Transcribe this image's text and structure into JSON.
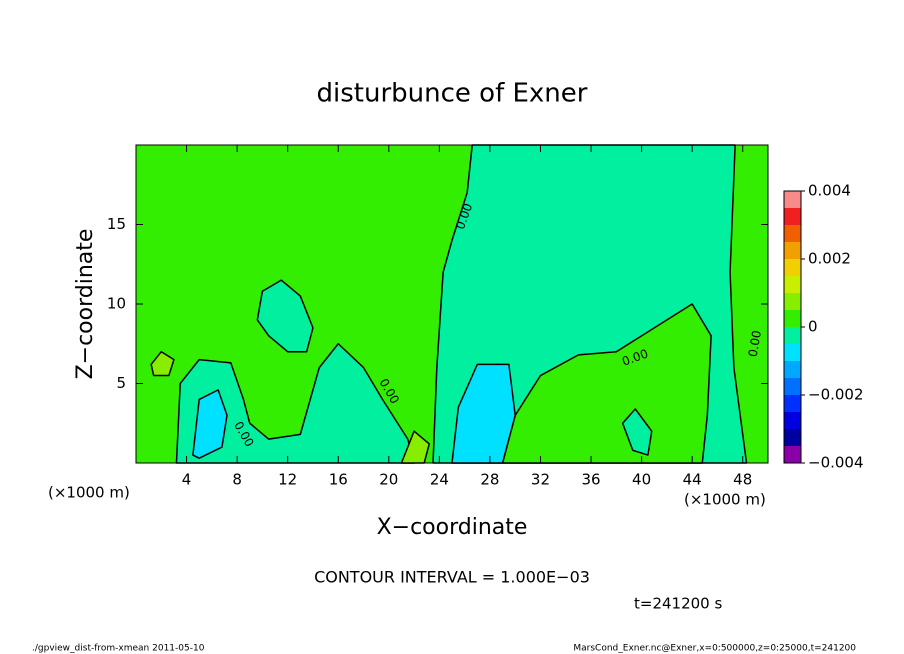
{
  "chart_data": {
    "type": "contour",
    "title": "disturbunce of Exner",
    "xlabel": "X−coordinate",
    "ylabel": "Z−coordinate",
    "x_unit": "(×1000 m)",
    "x_unit_right": "(×1000 m)",
    "xlim": [
      0,
      50
    ],
    "ylim": [
      0,
      20
    ],
    "xticks": [
      4,
      8,
      12,
      16,
      20,
      24,
      28,
      32,
      36,
      40,
      44,
      48
    ],
    "yticks": [
      5,
      10,
      15
    ],
    "background_level": 0,
    "colorbar": {
      "levels": [
        -0.004,
        -0.0035,
        -0.003,
        -0.0025,
        -0.002,
        -0.0015,
        -0.001,
        -0.0005,
        0,
        0.0005,
        0.001,
        0.0015,
        0.002,
        0.0025,
        0.003,
        0.0035,
        0.004
      ],
      "colors": [
        "#8a00a8",
        "#0000a0",
        "#0000e0",
        "#0030ff",
        "#0070ff",
        "#00a8ff",
        "#00e0ff",
        "#00f0a0",
        "#33ee00",
        "#88ee00",
        "#c8ee00",
        "#f0d000",
        "#f0a000",
        "#f06000",
        "#f02020",
        "#f88a8a"
      ],
      "ticks": [
        {
          "value": 0.004,
          "label": "0.004"
        },
        {
          "value": 0.002,
          "label": "0.002"
        },
        0,
        {
          "value": -0.002,
          "label": "−0.002"
        },
        {
          "value": -0.004,
          "label": "−0.004"
        }
      ]
    },
    "regions": [
      {
        "level": -0.0005,
        "x": [
          23.5,
          23.8,
          24.3,
          25,
          26.2,
          26.6,
          47.4,
          47,
          47.3,
          48.3
        ],
        "z": [
          0,
          6,
          12,
          14,
          17,
          20,
          20,
          12,
          6,
          0
        ]
      },
      {
        "level": 0,
        "x": [
          29,
          30,
          32,
          35,
          38,
          41,
          44,
          45.5,
          45.2,
          44.8
        ],
        "z": [
          0,
          3,
          5.5,
          6.8,
          7,
          8.5,
          10,
          8,
          3,
          0
        ]
      },
      {
        "level": -0.0005,
        "x": [
          3.2,
          3.5,
          5,
          7.5,
          8.5,
          9,
          10.5,
          13,
          14.5,
          16,
          18,
          19.5,
          21.5,
          22
        ],
        "z": [
          0,
          5,
          6.5,
          6.3,
          4,
          2.5,
          1.5,
          1.8,
          6,
          7.5,
          6,
          4,
          1.5,
          0
        ]
      },
      {
        "level": -0.0005,
        "x": [
          9.6,
          10,
          11.5,
          13,
          14,
          13.5,
          12,
          10.5
        ],
        "z": [
          9,
          10.8,
          11.5,
          10.5,
          8.5,
          7,
          7,
          8
        ]
      },
      {
        "level": -0.001,
        "x": [
          25,
          25.5,
          27,
          29.5,
          30,
          29,
          26.5
        ],
        "z": [
          0,
          3.5,
          6.2,
          6.2,
          3,
          0,
          0
        ]
      },
      {
        "level": -0.001,
        "x": [
          4.5,
          5,
          6.5,
          7.2,
          6.8,
          5
        ],
        "z": [
          0.5,
          4,
          4.6,
          3,
          1,
          0.3
        ]
      },
      {
        "level": -0.0005,
        "x": [
          38.5,
          39.5,
          40.8,
          40.5,
          39.3
        ],
        "z": [
          2.5,
          3.4,
          2,
          0.5,
          0.8
        ]
      },
      {
        "level": 0.0005,
        "x": [
          1.2,
          2,
          3,
          2.6,
          1.4
        ],
        "z": [
          6.2,
          7,
          6.5,
          5.5,
          5.5
        ]
      },
      {
        "level": 0.0005,
        "x": [
          21,
          22,
          23.2,
          22.8,
          21.6
        ],
        "z": [
          0,
          2,
          1.2,
          0,
          0
        ]
      }
    ],
    "contour_labels": [
      {
        "text": "0.00",
        "x": 26,
        "z": 15.5,
        "angle": -70
      },
      {
        "text": "0.00",
        "x": 8.5,
        "z": 1.8,
        "angle": 60
      },
      {
        "text": "0.00",
        "x": 20,
        "z": 4.5,
        "angle": 60
      },
      {
        "text": "0.00",
        "x": 39.5,
        "z": 6.6,
        "angle": -20
      },
      {
        "text": "0.00",
        "x": 49,
        "z": 7.5,
        "angle": -80
      }
    ],
    "interval_note": "CONTOUR INTERVAL = 1.000E−03",
    "time_note": "t=241200 s",
    "footer_left": "./gpview_dist-from-xmean  2011-05-10",
    "footer_right": "MarsCond_Exner.nc@Exner,x=0:500000,z=0:25000,t=241200"
  }
}
